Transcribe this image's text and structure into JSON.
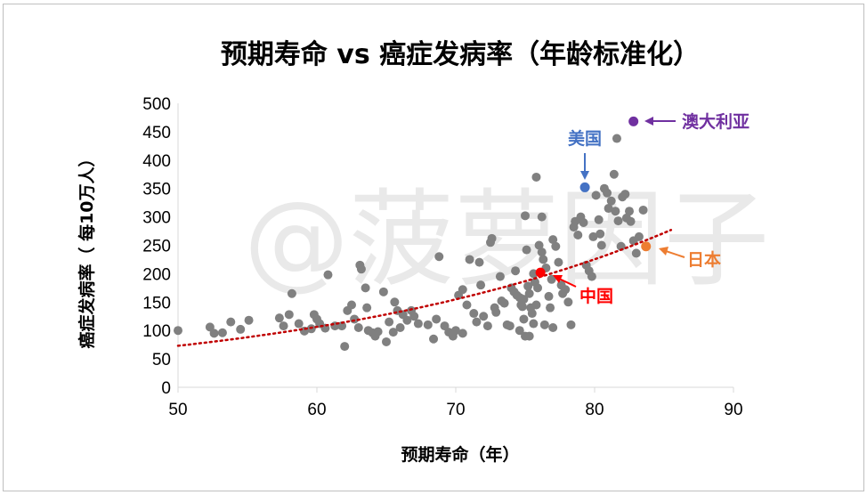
{
  "watermark": "@菠萝因子",
  "chart_data": {
    "type": "scatter",
    "title": "预期寿命 vs 癌症发病率（年龄标准化）",
    "xlabel": "预期寿命（年）",
    "ylabel": "癌症发病率（ 每10万人）",
    "xlim": [
      50,
      90
    ],
    "ylim": [
      0,
      500
    ],
    "xticks": [
      "50",
      "60",
      "70",
      "80",
      "90"
    ],
    "yticks": [
      "0",
      "50",
      "100",
      "150",
      "200",
      "250",
      "300",
      "350",
      "400",
      "450",
      "500"
    ],
    "grid": false,
    "colors": {
      "points": "#808080",
      "trend": "#c00000",
      "australia": "#7030a0",
      "usa": "#4472c4",
      "japan": "#ed7d31",
      "china": "#ff0000"
    },
    "trendline": {
      "type": "exponential",
      "x": [
        50,
        85.5
      ],
      "y": [
        73,
        277
      ]
    },
    "highlighted": [
      {
        "name": "澳大利亚",
        "x": 82.8,
        "y": 468,
        "color": "#7030a0"
      },
      {
        "name": "美国",
        "x": 79.3,
        "y": 352,
        "color": "#4472c4"
      },
      {
        "name": "日本",
        "x": 83.7,
        "y": 248,
        "color": "#ed7d31"
      },
      {
        "name": "中国",
        "x": 76.1,
        "y": 202,
        "color": "#ff0000"
      }
    ],
    "points": [
      [
        50.0,
        100
      ],
      [
        52.3,
        106
      ],
      [
        52.6,
        95
      ],
      [
        53.2,
        96
      ],
      [
        53.8,
        115
      ],
      [
        54.5,
        102
      ],
      [
        55.1,
        118
      ],
      [
        57.3,
        122
      ],
      [
        57.6,
        108
      ],
      [
        58.0,
        128
      ],
      [
        58.2,
        165
      ],
      [
        58.7,
        112
      ],
      [
        59.1,
        99
      ],
      [
        59.6,
        103
      ],
      [
        59.8,
        128
      ],
      [
        60.0,
        120
      ],
      [
        60.2,
        112
      ],
      [
        60.6,
        104
      ],
      [
        60.8,
        198
      ],
      [
        61.3,
        108
      ],
      [
        61.8,
        108
      ],
      [
        62.0,
        72
      ],
      [
        62.2,
        135
      ],
      [
        62.5,
        145
      ],
      [
        62.7,
        120
      ],
      [
        63.0,
        105
      ],
      [
        63.1,
        215
      ],
      [
        63.2,
        208
      ],
      [
        63.5,
        175
      ],
      [
        63.6,
        140
      ],
      [
        63.7,
        100
      ],
      [
        64.0,
        96
      ],
      [
        64.2,
        90
      ],
      [
        64.4,
        98
      ],
      [
        64.8,
        168
      ],
      [
        65.0,
        80
      ],
      [
        65.2,
        115
      ],
      [
        65.5,
        97
      ],
      [
        65.6,
        150
      ],
      [
        65.8,
        135
      ],
      [
        66.0,
        105
      ],
      [
        66.2,
        128
      ],
      [
        66.5,
        118
      ],
      [
        66.8,
        135
      ],
      [
        67.0,
        125
      ],
      [
        67.3,
        112
      ],
      [
        68.0,
        110
      ],
      [
        68.4,
        85
      ],
      [
        68.6,
        120
      ],
      [
        68.8,
        230
      ],
      [
        69.2,
        108
      ],
      [
        69.5,
        97
      ],
      [
        69.8,
        90
      ],
      [
        70.0,
        100
      ],
      [
        70.2,
        162
      ],
      [
        70.5,
        172
      ],
      [
        70.8,
        145
      ],
      [
        71.0,
        225
      ],
      [
        71.3,
        130
      ],
      [
        71.5,
        115
      ],
      [
        71.7,
        220
      ],
      [
        72.0,
        125
      ],
      [
        72.3,
        108
      ],
      [
        72.5,
        255
      ],
      [
        72.6,
        262
      ],
      [
        72.9,
        132
      ],
      [
        73.3,
        152
      ],
      [
        73.5,
        148
      ],
      [
        73.7,
        110
      ],
      [
        73.9,
        108
      ],
      [
        74.0,
        175
      ],
      [
        74.2,
        168
      ],
      [
        74.4,
        162
      ],
      [
        74.6,
        158
      ],
      [
        74.7,
        145
      ],
      [
        74.8,
        142
      ],
      [
        74.9,
        155
      ],
      [
        75.0,
        302
      ],
      [
        75.1,
        242
      ],
      [
        75.2,
        178
      ],
      [
        75.3,
        165
      ],
      [
        75.4,
        140
      ],
      [
        75.5,
        130
      ],
      [
        75.6,
        200
      ],
      [
        75.7,
        185
      ],
      [
        75.8,
        145
      ],
      [
        75.9,
        175
      ],
      [
        76.0,
        250
      ],
      [
        76.2,
        238
      ],
      [
        76.3,
        225
      ],
      [
        76.5,
        210
      ],
      [
        76.7,
        160
      ],
      [
        76.9,
        190
      ],
      [
        77.0,
        260
      ],
      [
        77.2,
        248
      ],
      [
        77.4,
        220
      ],
      [
        77.6,
        180
      ],
      [
        77.7,
        165
      ],
      [
        77.9,
        172
      ],
      [
        78.1,
        150
      ],
      [
        78.3,
        110
      ],
      [
        78.5,
        282
      ],
      [
        78.6,
        292
      ],
      [
        78.8,
        268
      ],
      [
        79.0,
        300
      ],
      [
        79.2,
        290
      ],
      [
        79.4,
        215
      ],
      [
        79.6,
        205
      ],
      [
        79.8,
        195
      ],
      [
        79.9,
        265
      ],
      [
        80.1,
        338
      ],
      [
        80.3,
        295
      ],
      [
        80.4,
        270
      ],
      [
        80.5,
        250
      ],
      [
        80.7,
        350
      ],
      [
        80.9,
        342
      ],
      [
        81.0,
        315
      ],
      [
        81.2,
        328
      ],
      [
        81.4,
        375
      ],
      [
        81.5,
        310
      ],
      [
        81.6,
        438
      ],
      [
        81.7,
        293
      ],
      [
        81.9,
        248
      ],
      [
        82.0,
        335
      ],
      [
        82.2,
        340
      ],
      [
        82.3,
        298
      ],
      [
        82.5,
        310
      ],
      [
        82.6,
        292
      ],
      [
        82.8,
        258
      ],
      [
        83.0,
        236
      ],
      [
        83.2,
        265
      ],
      [
        83.5,
        312
      ],
      [
        74.9,
        120
      ],
      [
        75.3,
        90
      ],
      [
        75.6,
        112
      ],
      [
        76.4,
        110
      ],
      [
        77.0,
        105
      ],
      [
        75.0,
        90
      ],
      [
        76.8,
        140
      ],
      [
        73.2,
        195
      ],
      [
        74.3,
        205
      ],
      [
        75.8,
        370
      ],
      [
        76.2,
        300
      ],
      [
        74.6,
        100
      ],
      [
        72.8,
        140
      ],
      [
        71.8,
        180
      ],
      [
        70.5,
        95
      ]
    ]
  }
}
